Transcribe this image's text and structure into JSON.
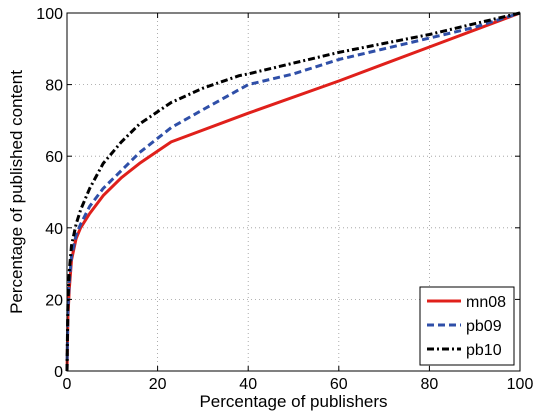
{
  "chart_data": {
    "type": "line",
    "xlabel": "Percentage of  publishers",
    "ylabel": "Percentage of published content",
    "xlim": [
      0,
      100
    ],
    "ylim": [
      0,
      100
    ],
    "xticks": [
      "0",
      "20",
      "40",
      "60",
      "80",
      "100"
    ],
    "yticks": [
      "0",
      "20",
      "40",
      "60",
      "80",
      "100"
    ],
    "grid": true,
    "legend_position": "bottom-right",
    "series": [
      {
        "name": "mn08",
        "color": "#e0201b",
        "style": "solid",
        "x": [
          0,
          0.2,
          0.5,
          1,
          2,
          3,
          5,
          8,
          12,
          16,
          23,
          40,
          60,
          80,
          100
        ],
        "y": [
          0,
          15,
          23,
          31,
          37,
          40,
          44,
          49,
          54,
          58,
          64,
          72,
          81,
          90.5,
          100
        ]
      },
      {
        "name": "pb09",
        "color": "#2f4fa8",
        "style": "dashed",
        "x": [
          0,
          0.2,
          0.5,
          1,
          2,
          3,
          5,
          8,
          12,
          16,
          23,
          30,
          40,
          50,
          60,
          70,
          80,
          90,
          100
        ],
        "y": [
          0,
          17,
          25,
          32,
          38,
          41,
          46,
          51,
          56,
          61,
          68,
          73,
          80,
          83,
          87,
          90,
          93,
          96,
          100
        ]
      },
      {
        "name": "pb10",
        "color": "#000000",
        "style": "dash-dot",
        "x": [
          0,
          0.2,
          0.5,
          1,
          2,
          3,
          5,
          8,
          12,
          16,
          23,
          30,
          38,
          40,
          50,
          60,
          70,
          80,
          90,
          100
        ],
        "y": [
          0,
          19,
          28,
          35,
          41,
          45,
          51,
          58,
          64,
          69,
          75,
          79,
          82.5,
          83,
          86,
          89,
          91.5,
          94,
          97,
          100
        ]
      }
    ]
  }
}
